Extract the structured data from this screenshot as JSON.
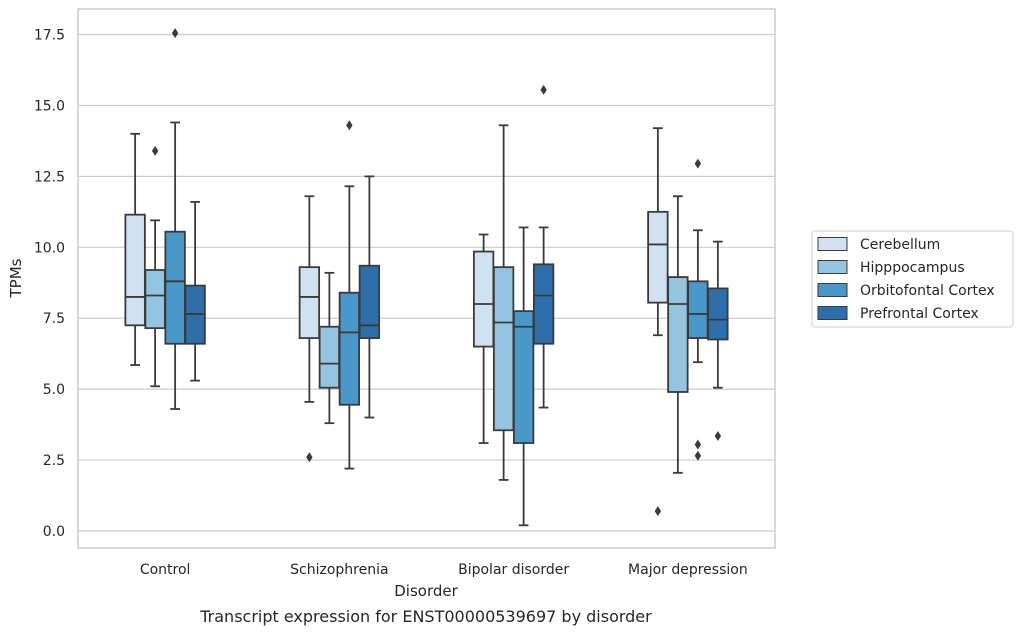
{
  "chart_data": {
    "type": "boxplot",
    "xlabel": "Disorder",
    "ylabel": "TPMs",
    "caption": "Transcript expression for ENST00000539697 by disorder",
    "ylim": [
      -0.6,
      18.4
    ],
    "yticks": [
      "0.0",
      "2.5",
      "5.0",
      "7.5",
      "10.0",
      "12.5",
      "15.0",
      "17.5"
    ],
    "ytick_values": [
      0,
      2.5,
      5,
      7.5,
      10,
      12.5,
      15,
      17.5
    ],
    "grid": "horizontal",
    "legend_position": "right",
    "categories": [
      "Control",
      "Schizophrenia",
      "Bipolar disorder",
      "Major depression"
    ],
    "series": [
      {
        "name": "Cerebellum",
        "color": "#d0e1f2",
        "boxes": [
          {
            "whislo": 5.85,
            "q1": 7.25,
            "med": 8.25,
            "q3": 11.15,
            "whishi": 14.0,
            "fliers": []
          },
          {
            "whislo": 4.55,
            "q1": 6.8,
            "med": 8.25,
            "q3": 9.3,
            "whishi": 11.8,
            "fliers": [
              2.6
            ]
          },
          {
            "whislo": 3.1,
            "q1": 6.5,
            "med": 8.0,
            "q3": 9.85,
            "whishi": 10.45,
            "fliers": []
          },
          {
            "whislo": 6.9,
            "q1": 8.05,
            "med": 10.1,
            "q3": 11.25,
            "whishi": 14.2,
            "fliers": [
              0.7
            ]
          }
        ]
      },
      {
        "name": "Hipppocampus",
        "color": "#94c4df",
        "boxes": [
          {
            "whislo": 5.1,
            "q1": 7.15,
            "med": 8.3,
            "q3": 9.2,
            "whishi": 10.95,
            "fliers": [
              13.4
            ]
          },
          {
            "whislo": 3.8,
            "q1": 5.05,
            "med": 5.9,
            "q3": 7.2,
            "whishi": 9.1,
            "fliers": []
          },
          {
            "whislo": 1.8,
            "q1": 3.55,
            "med": 7.35,
            "q3": 9.3,
            "whishi": 14.3,
            "fliers": []
          },
          {
            "whislo": 2.05,
            "q1": 4.9,
            "med": 8.0,
            "q3": 8.95,
            "whishi": 11.8,
            "fliers": []
          }
        ]
      },
      {
        "name": "Orbitofontal Cortex",
        "color": "#4a98c9",
        "boxes": [
          {
            "whislo": 4.3,
            "q1": 6.6,
            "med": 8.8,
            "q3": 10.55,
            "whishi": 14.4,
            "fliers": [
              17.55
            ]
          },
          {
            "whislo": 2.2,
            "q1": 4.45,
            "med": 7.0,
            "q3": 8.4,
            "whishi": 12.15,
            "fliers": [
              14.3
            ]
          },
          {
            "whislo": 0.2,
            "q1": 3.1,
            "med": 7.2,
            "q3": 7.75,
            "whishi": 10.7,
            "fliers": []
          },
          {
            "whislo": 5.95,
            "q1": 6.8,
            "med": 7.65,
            "q3": 8.8,
            "whishi": 10.6,
            "fliers": [
              12.95,
              3.05,
              2.65
            ]
          }
        ]
      },
      {
        "name": "Prefrontal Cortex",
        "color": "#2e6fab",
        "boxes": [
          {
            "whislo": 5.3,
            "q1": 6.6,
            "med": 7.65,
            "q3": 8.65,
            "whishi": 11.6,
            "fliers": []
          },
          {
            "whislo": 4.0,
            "q1": 6.8,
            "med": 7.25,
            "q3": 9.35,
            "whishi": 12.5,
            "fliers": []
          },
          {
            "whislo": 4.35,
            "q1": 6.6,
            "med": 8.3,
            "q3": 9.4,
            "whishi": 10.7,
            "fliers": [
              15.55
            ]
          },
          {
            "whislo": 5.05,
            "q1": 6.75,
            "med": 7.45,
            "q3": 8.55,
            "whishi": 10.2,
            "fliers": [
              3.35
            ]
          }
        ]
      }
    ]
  }
}
